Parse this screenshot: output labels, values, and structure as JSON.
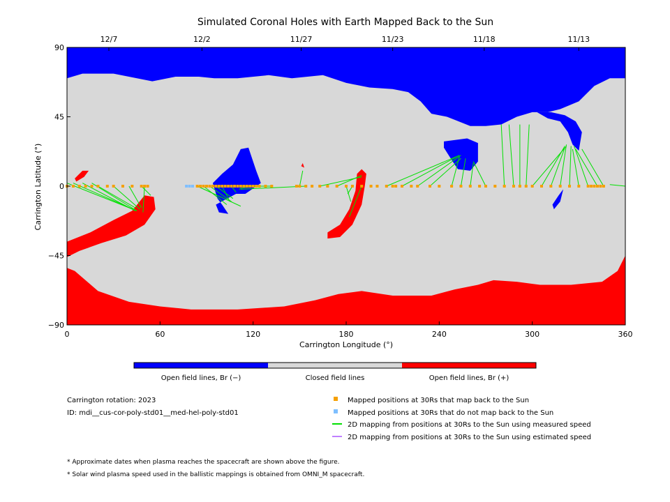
{
  "chart_data": {
    "type": "scatter",
    "title": "Simulated Coronal Holes with Earth Mapped Back to the Sun",
    "xlabel": "Carrington Longitude (°)",
    "ylabel": "Carrington Latitude (°)",
    "xlim": [
      0,
      360
    ],
    "ylim": [
      -90,
      90
    ],
    "x_ticks": [
      "0",
      "60",
      "120",
      "180",
      "240",
      "300",
      "360"
    ],
    "y_ticks": [
      "90",
      "45",
      "0",
      "−45",
      "−90"
    ],
    "top_axis": {
      "ticks": [
        {
          "lon": 27,
          "label": "12/7"
        },
        {
          "lon": 87,
          "label": "12/2"
        },
        {
          "lon": 151,
          "label": "11/27"
        },
        {
          "lon": 210,
          "label": "11/23"
        },
        {
          "lon": 269,
          "label": "11/18"
        },
        {
          "lon": 330,
          "label": "11/13"
        }
      ]
    },
    "field_regions": {
      "open_negative_color": "#0000ff",
      "closed_color": "#d8d8d8",
      "open_positive_color": "#ff0000",
      "blue": [
        {
          "name": "north-polar-hole",
          "points": [
            [
              0,
              90
            ],
            [
              360,
              90
            ],
            [
              360,
              70
            ],
            [
              350,
              70
            ],
            [
              340,
              65
            ],
            [
              330,
              55
            ],
            [
              318,
              50
            ],
            [
              310,
              48
            ],
            [
              300,
              48
            ],
            [
              290,
              45
            ],
            [
              280,
              40
            ],
            [
              270,
              39
            ],
            [
              260,
              39
            ],
            [
              250,
              43
            ],
            [
              245,
              45
            ],
            [
              235,
              47
            ],
            [
              228,
              55
            ],
            [
              220,
              61
            ],
            [
              210,
              63
            ],
            [
              195,
              64
            ],
            [
              180,
              67
            ],
            [
              165,
              72
            ],
            [
              145,
              70
            ],
            [
              130,
              72
            ],
            [
              110,
              70
            ],
            [
              95,
              70
            ],
            [
              85,
              71
            ],
            [
              70,
              71
            ],
            [
              55,
              68
            ],
            [
              30,
              73
            ],
            [
              10,
              73
            ],
            [
              0,
              70
            ]
          ]
        },
        {
          "name": "ne-lobe",
          "points": [
            [
              303,
              48
            ],
            [
              310,
              44
            ],
            [
              318,
              42
            ],
            [
              323,
              35
            ],
            [
              326,
              27
            ],
            [
              330,
              23
            ],
            [
              332,
              35
            ],
            [
              328,
              42
            ],
            [
              321,
              46
            ],
            [
              312,
              48
            ]
          ]
        },
        {
          "name": "hole-250",
          "points": [
            [
              243,
              29
            ],
            [
              258,
              31
            ],
            [
              265,
              28
            ],
            [
              265,
              16
            ],
            [
              260,
              10
            ],
            [
              252,
              11
            ],
            [
              248,
              17
            ],
            [
              243,
              25
            ]
          ]
        },
        {
          "name": "slant-hole-110",
          "points": [
            [
              109,
              -5
            ],
            [
              115,
              -5
            ],
            [
              125,
              2
            ],
            [
              122,
              10
            ],
            [
              117,
              25
            ],
            [
              112,
              24
            ],
            [
              107,
              14
            ],
            [
              100,
              8
            ],
            [
              94,
              2
            ],
            [
              97,
              -8
            ],
            [
              100,
              -12
            ],
            [
              104,
              -18
            ],
            [
              98,
              -17
            ],
            [
              96,
              -12
            ]
          ]
        },
        {
          "name": "spot-315",
          "points": [
            [
              314,
              -15
            ],
            [
              318,
              -10
            ],
            [
              320,
              -2
            ],
            [
              317,
              -6
            ],
            [
              313,
              -12
            ]
          ]
        }
      ],
      "red": [
        {
          "name": "south-polar-hole",
          "points": [
            [
              0,
              -90
            ],
            [
              360,
              -90
            ],
            [
              360,
              -45
            ],
            [
              355,
              -55
            ],
            [
              345,
              -62
            ],
            [
              325,
              -64
            ],
            [
              305,
              -64
            ],
            [
              290,
              -62
            ],
            [
              275,
              -61
            ],
            [
              265,
              -64
            ],
            [
              250,
              -67
            ],
            [
              235,
              -71
            ],
            [
              210,
              -71
            ],
            [
              190,
              -68
            ],
            [
              175,
              -70
            ],
            [
              160,
              -74
            ],
            [
              140,
              -78
            ],
            [
              110,
              -80
            ],
            [
              80,
              -80
            ],
            [
              60,
              -78
            ],
            [
              40,
              -75
            ],
            [
              20,
              -68
            ],
            [
              5,
              -55
            ],
            [
              0,
              -53
            ]
          ]
        },
        {
          "name": "sw-tongue",
          "points": [
            [
              0,
              -36
            ],
            [
              15,
              -30
            ],
            [
              30,
              -22
            ],
            [
              42,
              -16
            ],
            [
              50,
              -6
            ],
            [
              56,
              -7
            ],
            [
              57,
              -15
            ],
            [
              50,
              -25
            ],
            [
              38,
              -32
            ],
            [
              22,
              -37
            ],
            [
              8,
              -42
            ],
            [
              0,
              -46
            ]
          ]
        },
        {
          "name": "slant-strip-185",
          "points": [
            [
              168,
              -30
            ],
            [
              176,
              -25
            ],
            [
              182,
              -15
            ],
            [
              186,
              -3
            ],
            [
              187,
              8
            ],
            [
              190,
              11
            ],
            [
              193,
              8
            ],
            [
              192,
              0
            ],
            [
              190,
              -12
            ],
            [
              184,
              -25
            ],
            [
              176,
              -33
            ],
            [
              168,
              -34
            ]
          ]
        },
        {
          "name": "spot-10",
          "points": [
            [
              5,
              5
            ],
            [
              10,
              10
            ],
            [
              14,
              10
            ],
            [
              11,
              6
            ],
            [
              6,
              3
            ]
          ]
        },
        {
          "name": "spot-152",
          "points": [
            [
              151,
              13
            ],
            [
              152,
              15
            ],
            [
              153,
              12
            ]
          ]
        }
      ]
    },
    "mapped_points_30Rs_latitude": 0,
    "mapped_orange_lon": [
      0,
      4,
      8,
      12,
      16,
      20,
      26,
      30,
      36,
      42,
      48,
      50,
      52,
      84,
      86,
      88,
      90,
      92,
      94,
      96,
      98,
      100,
      102,
      104,
      106,
      108,
      110,
      112,
      114,
      116,
      118,
      120,
      122,
      124,
      128,
      132,
      148,
      150,
      154,
      158,
      163,
      168,
      174,
      180,
      184,
      190,
      196,
      200,
      206,
      210,
      212,
      216,
      222,
      226,
      234,
      240,
      248,
      254,
      260,
      266,
      270,
      276,
      282,
      288,
      292,
      296,
      300,
      306,
      312,
      318,
      324,
      330,
      336,
      338,
      340,
      342,
      344,
      346
    ],
    "mapped_blue_lon": [
      77,
      79,
      81
    ],
    "mapping_lines_measured": [
      [
        [
          0,
          2
        ],
        [
          45,
          -16
        ]
      ],
      [
        [
          4,
          2
        ],
        [
          45,
          -16
        ]
      ],
      [
        [
          10,
          2
        ],
        [
          44,
          -16
        ]
      ],
      [
        [
          16,
          2
        ],
        [
          45,
          -16
        ]
      ],
      [
        [
          20,
          0
        ],
        [
          44,
          -14
        ]
      ],
      [
        [
          30,
          0
        ],
        [
          47,
          -15
        ]
      ],
      [
        [
          40,
          0
        ],
        [
          48,
          -14
        ]
      ],
      [
        [
          48,
          0
        ],
        [
          54,
          -6
        ]
      ],
      [
        [
          50,
          0
        ],
        [
          49,
          -17
        ]
      ],
      [
        [
          84,
          0
        ],
        [
          112,
          -13
        ]
      ],
      [
        [
          88,
          0
        ],
        [
          103,
          -12
        ]
      ],
      [
        [
          92,
          0
        ],
        [
          106,
          -10
        ]
      ],
      [
        [
          96,
          0
        ],
        [
          107,
          -8
        ]
      ],
      [
        [
          100,
          0
        ],
        [
          105,
          -10
        ]
      ],
      [
        [
          106,
          0
        ],
        [
          109,
          -4
        ]
      ],
      [
        [
          116,
          0
        ],
        [
          111,
          -2
        ]
      ],
      [
        [
          124,
          0
        ],
        [
          113,
          -1
        ]
      ],
      [
        [
          132,
          0
        ],
        [
          113,
          0
        ]
      ],
      [
        [
          150,
          0
        ],
        [
          152,
          10
        ]
      ],
      [
        [
          154,
          0
        ],
        [
          112,
          -2
        ]
      ],
      [
        [
          163,
          0
        ],
        [
          190,
          6
        ]
      ],
      [
        [
          174,
          0
        ],
        [
          190,
          7
        ]
      ],
      [
        [
          180,
          0
        ],
        [
          183,
          -10
        ]
      ],
      [
        [
          184,
          0
        ],
        [
          181,
          -5
        ]
      ],
      [
        [
          190,
          0
        ],
        [
          182,
          -20
        ]
      ],
      [
        [
          206,
          0
        ],
        [
          253,
          20
        ]
      ],
      [
        [
          216,
          0
        ],
        [
          253,
          20
        ]
      ],
      [
        [
          226,
          0
        ],
        [
          254,
          20
        ]
      ],
      [
        [
          234,
          0
        ],
        [
          254,
          18
        ]
      ],
      [
        [
          248,
          0
        ],
        [
          253,
          19
        ]
      ],
      [
        [
          254,
          0
        ],
        [
          257,
          18
        ]
      ],
      [
        [
          260,
          0
        ],
        [
          262,
          15
        ]
      ],
      [
        [
          270,
          0
        ],
        [
          262,
          16
        ]
      ],
      [
        [
          282,
          0
        ],
        [
          280,
          40
        ]
      ],
      [
        [
          288,
          0
        ],
        [
          285,
          40
        ]
      ],
      [
        [
          292,
          0
        ],
        [
          292,
          40
        ]
      ],
      [
        [
          296,
          0
        ],
        [
          298,
          40
        ]
      ],
      [
        [
          300,
          0
        ],
        [
          322,
          26
        ]
      ],
      [
        [
          306,
          0
        ],
        [
          321,
          26
        ]
      ],
      [
        [
          312,
          0
        ],
        [
          321,
          25
        ]
      ],
      [
        [
          318,
          0
        ],
        [
          322,
          27
        ]
      ],
      [
        [
          324,
          0
        ],
        [
          325,
          26
        ]
      ],
      [
        [
          330,
          0
        ],
        [
          326,
          24
        ]
      ],
      [
        [
          336,
          0
        ],
        [
          327,
          26
        ]
      ],
      [
        [
          342,
          0
        ],
        [
          328,
          24
        ]
      ],
      [
        [
          346,
          0
        ],
        [
          332,
          24
        ]
      ],
      [
        [
          360,
          0
        ],
        [
          350,
          1
        ]
      ]
    ],
    "mapping_lines_estimated": [],
    "legend": {
      "colorbar": [
        "Open field lines, Br (−)",
        "Closed field lines",
        "Open field lines, Br (+)"
      ],
      "entries": [
        {
          "label": "Mapped positions at 30Rs that map back to the Sun",
          "color": "#f5a000",
          "marker": "square"
        },
        {
          "label": "Mapped positions at 30Rs that do not map back to the Sun",
          "color": "#7fbfff",
          "marker": "square"
        },
        {
          "label": "2D mapping from positions at 30Rs to the Sun using measured speed",
          "color": "#00e000",
          "marker": "line"
        },
        {
          "label": "2D mapping from positions at 30Rs to the Sun using estimated speed",
          "color": "#c080ff",
          "marker": "line"
        }
      ]
    },
    "info": {
      "rotation": "Carrington rotation: 2023",
      "id": "ID: mdi__cus-cor-poly-std01__med-hel-poly-std01"
    },
    "notes": [
      "* Approximate dates when plasma reaches the spacecraft are shown above the figure.",
      "* Solar wind plasma speed used in the ballistic mappings is obtained from OMNI_M spacecraft."
    ],
    "colors": {
      "mapped": "#f5a000",
      "unmapped": "#7fbfff",
      "measured": "#00e000",
      "estimated": "#c080ff"
    }
  }
}
